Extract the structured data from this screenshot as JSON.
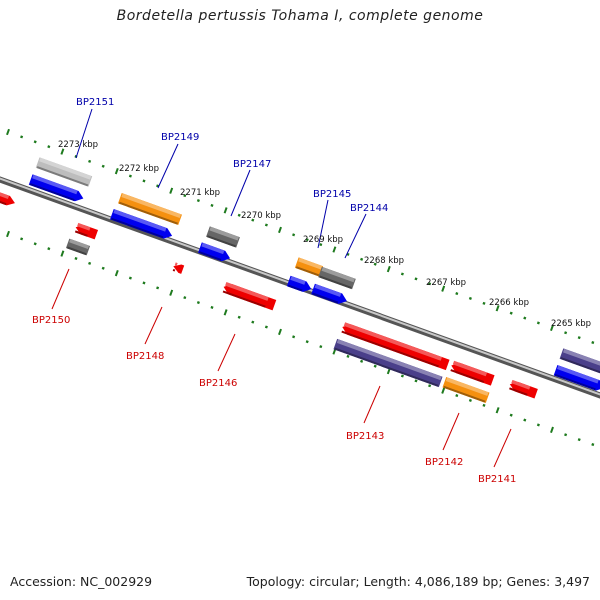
{
  "title": "Bordetella pertussis Tohama I, complete genome",
  "footer": {
    "accession": "Accession: NC_002929",
    "info": "Topology: circular; Length: 4,086,189 bp; Genes: 3,497"
  },
  "colors": {
    "backbone": "#8a8a8a",
    "tick": "#1e7a1e",
    "label_forward": "#0000aa",
    "label_reverse": "#cc0000",
    "blue": "#0000ee",
    "gray": "#666666",
    "lightgray": "#bdbdbd",
    "orange": "#f5900f",
    "red": "#ee0000",
    "purple": "#4a3f8a"
  },
  "ruler_labels": [
    "2273 kbp",
    "2272 kbp",
    "2271 kbp",
    "2270 kbp",
    "2269 kbp",
    "2268 kbp",
    "2267 kbp",
    "2266 kbp",
    "2265 kbp"
  ],
  "forward_labels": [
    "BP2151",
    "BP2149",
    "BP2147",
    "BP2145",
    "BP2144"
  ],
  "reverse_labels": [
    "BP2150",
    "BP2148",
    "BP2146",
    "BP2143",
    "BP2142",
    "BP2141"
  ]
}
